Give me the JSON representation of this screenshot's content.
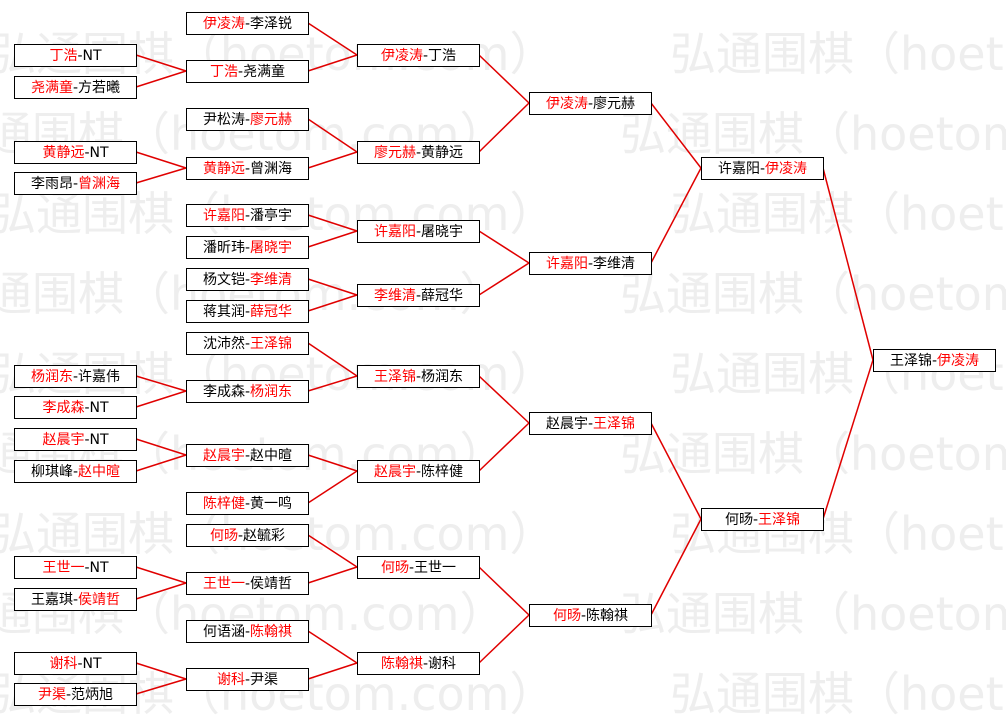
{
  "watermark": "弘通围棋（hoetom.com）",
  "separator": "-",
  "winner_color": "#ff0000",
  "loser_color": "#000000",
  "line_color": "#e00000",
  "nodes": [
    {
      "players": [
        "丁浩",
        "NT"
      ],
      "winner": 0
    },
    {
      "players": [
        "尧满童",
        "方若曦"
      ],
      "winner": 0
    },
    {
      "players": [
        "黄静远",
        "NT"
      ],
      "winner": 0
    },
    {
      "players": [
        "李雨昂",
        "曾渊海"
      ],
      "winner": 1
    },
    {
      "players": [
        "杨润东",
        "许嘉伟"
      ],
      "winner": 0
    },
    {
      "players": [
        "李成森",
        "NT"
      ],
      "winner": 0
    },
    {
      "players": [
        "赵晨宇",
        "NT"
      ],
      "winner": 0
    },
    {
      "players": [
        "柳琪峰",
        "赵中暄"
      ],
      "winner": 1
    },
    {
      "players": [
        "王世一",
        "NT"
      ],
      "winner": 0
    },
    {
      "players": [
        "王嘉琪",
        "侯靖哲"
      ],
      "winner": 1
    },
    {
      "players": [
        "谢科",
        "NT"
      ],
      "winner": 0
    },
    {
      "players": [
        "尹渠",
        "范炳旭"
      ],
      "winner": 0
    },
    {
      "players": [
        "伊凌涛",
        "李泽锐"
      ],
      "winner": 0
    },
    {
      "players": [
        "丁浩",
        "尧满童"
      ],
      "winner": 0
    },
    {
      "players": [
        "尹松涛",
        "廖元赫"
      ],
      "winner": 1
    },
    {
      "players": [
        "黄静远",
        "曾渊海"
      ],
      "winner": 0
    },
    {
      "players": [
        "许嘉阳",
        "潘亭宇"
      ],
      "winner": 0
    },
    {
      "players": [
        "潘昕玮",
        "屠晓宇"
      ],
      "winner": 1
    },
    {
      "players": [
        "杨文铠",
        "李维清"
      ],
      "winner": 1
    },
    {
      "players": [
        "蒋其润",
        "薛冠华"
      ],
      "winner": 1
    },
    {
      "players": [
        "沈沛然",
        "王泽锦"
      ],
      "winner": 1
    },
    {
      "players": [
        "李成森",
        "杨润东"
      ],
      "winner": 1
    },
    {
      "players": [
        "赵晨宇",
        "赵中暄"
      ],
      "winner": 0
    },
    {
      "players": [
        "陈梓健",
        "黄一鸣"
      ],
      "winner": 0
    },
    {
      "players": [
        "何旸",
        "赵毓彩"
      ],
      "winner": 0
    },
    {
      "players": [
        "王世一",
        "侯靖哲"
      ],
      "winner": 0
    },
    {
      "players": [
        "何语涵",
        "陈翰祺"
      ],
      "winner": 1
    },
    {
      "players": [
        "谢科",
        "尹渠"
      ],
      "winner": 0
    },
    {
      "players": [
        "伊凌涛",
        "丁浩"
      ],
      "winner": 0
    },
    {
      "players": [
        "廖元赫",
        "黄静远"
      ],
      "winner": 0
    },
    {
      "players": [
        "许嘉阳",
        "屠晓宇"
      ],
      "winner": 0
    },
    {
      "players": [
        "李维清",
        "薛冠华"
      ],
      "winner": 0
    },
    {
      "players": [
        "王泽锦",
        "杨润东"
      ],
      "winner": 0
    },
    {
      "players": [
        "赵晨宇",
        "陈梓健"
      ],
      "winner": 0
    },
    {
      "players": [
        "何旸",
        "王世一"
      ],
      "winner": 0
    },
    {
      "players": [
        "陈翰祺",
        "谢科"
      ],
      "winner": 0
    },
    {
      "players": [
        "伊凌涛",
        "廖元赫"
      ],
      "winner": 0
    },
    {
      "players": [
        "许嘉阳",
        "李维清"
      ],
      "winner": 0
    },
    {
      "players": [
        "赵晨宇",
        "王泽锦"
      ],
      "winner": 1
    },
    {
      "players": [
        "何旸",
        "陈翰祺"
      ],
      "winner": 0
    },
    {
      "players": [
        "许嘉阳",
        "伊凌涛"
      ],
      "winner": 1
    },
    {
      "players": [
        "何旸",
        "王泽锦"
      ],
      "winner": 1
    },
    {
      "players": [
        "王泽锦",
        "伊凌涛"
      ],
      "winner": 1
    }
  ]
}
